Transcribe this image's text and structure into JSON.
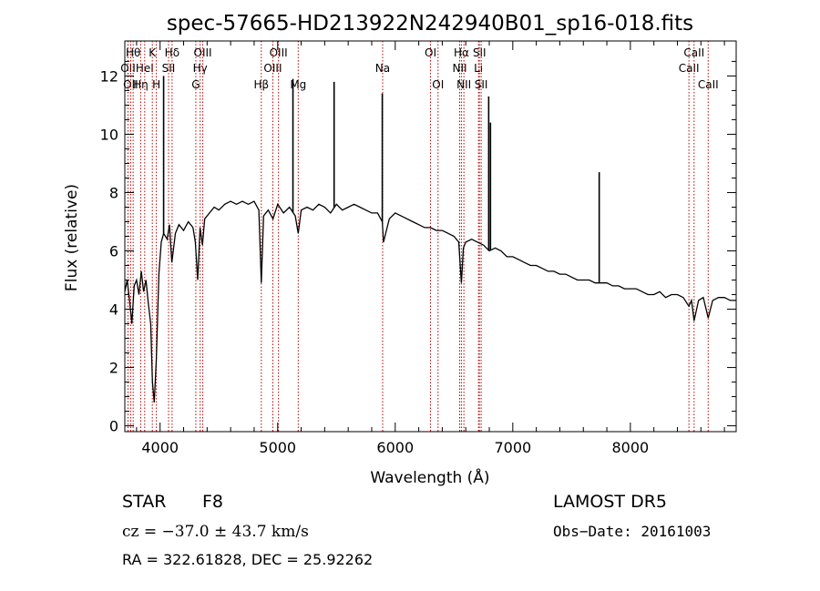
{
  "chart_data": {
    "type": "line",
    "title": "spec-57665-HD213922N242940B01_sp16-018.fits",
    "xlabel": "Wavelength (Å)",
    "ylabel": "Flux (relative)",
    "xlim": [
      3700,
      8900
    ],
    "ylim": [
      -0.2,
      13.2
    ],
    "x_ticks": [
      4000,
      5000,
      6000,
      7000,
      8000
    ],
    "x_tick_labels": [
      "4000",
      "5000",
      "6000",
      "7000",
      "8000"
    ],
    "y_ticks": [
      0,
      2,
      4,
      6,
      8,
      10,
      12
    ],
    "y_tick_labels": [
      "0",
      "2",
      "4",
      "6",
      "8",
      "10",
      "12"
    ],
    "grid": false,
    "series": [
      {
        "color": "#000000",
        "x": [
          3700,
          3720,
          3740,
          3760,
          3780,
          3800,
          3820,
          3840,
          3860,
          3880,
          3900,
          3920,
          3935,
          3950,
          3968,
          3990,
          4010,
          4030,
          4060,
          4080,
          4100,
          4130,
          4160,
          4200,
          4240,
          4280,
          4300,
          4320,
          4340,
          4360,
          4380,
          4420,
          4460,
          4500,
          4550,
          4600,
          4650,
          4700,
          4750,
          4800,
          4840,
          4861,
          4880,
          4920,
          4960,
          5000,
          5050,
          5100,
          5150,
          5175,
          5200,
          5250,
          5300,
          5350,
          5400,
          5450,
          5500,
          5550,
          5600,
          5650,
          5700,
          5750,
          5800,
          5850,
          5890,
          5900,
          5950,
          6000,
          6050,
          6100,
          6150,
          6200,
          6250,
          6300,
          6350,
          6400,
          6450,
          6500,
          6540,
          6563,
          6580,
          6600,
          6650,
          6700,
          6750,
          6800,
          6850,
          6900,
          6950,
          7000,
          7050,
          7100,
          7150,
          7200,
          7250,
          7300,
          7350,
          7400,
          7450,
          7500,
          7550,
          7600,
          7650,
          7700,
          7750,
          7800,
          7850,
          7900,
          7950,
          8000,
          8050,
          8100,
          8150,
          8200,
          8250,
          8300,
          8350,
          8400,
          8450,
          8498,
          8520,
          8542,
          8580,
          8620,
          8662,
          8700,
          8750,
          8800,
          8850,
          8900
        ],
        "y": [
          4.6,
          5.0,
          4.3,
          3.5,
          4.8,
          5.0,
          4.5,
          5.3,
          4.6,
          5.0,
          4.2,
          3.5,
          1.5,
          0.8,
          2.3,
          5.2,
          6.3,
          6.6,
          6.4,
          6.9,
          5.6,
          6.6,
          6.9,
          6.7,
          7.0,
          6.8,
          6.3,
          5.0,
          6.8,
          6.2,
          7.1,
          7.3,
          7.5,
          7.4,
          7.6,
          7.7,
          7.6,
          7.7,
          7.6,
          7.7,
          7.4,
          4.9,
          7.2,
          7.4,
          7.1,
          7.6,
          7.3,
          7.5,
          7.2,
          6.6,
          7.4,
          7.5,
          7.4,
          7.6,
          7.5,
          7.3,
          7.6,
          7.4,
          7.5,
          7.6,
          7.5,
          7.4,
          7.3,
          7.3,
          7.0,
          6.3,
          7.1,
          7.3,
          7.2,
          7.1,
          7.0,
          6.9,
          6.8,
          6.8,
          6.7,
          6.7,
          6.6,
          6.5,
          6.3,
          4.9,
          6.1,
          6.3,
          6.4,
          6.3,
          6.2,
          6.0,
          6.1,
          6.0,
          5.8,
          5.8,
          5.7,
          5.6,
          5.5,
          5.5,
          5.4,
          5.3,
          5.3,
          5.2,
          5.2,
          5.1,
          5.0,
          5.0,
          5.0,
          4.9,
          4.9,
          4.9,
          4.8,
          4.8,
          4.7,
          4.7,
          4.7,
          4.6,
          4.5,
          4.5,
          4.6,
          4.4,
          4.5,
          4.5,
          4.4,
          4.1,
          4.3,
          3.6,
          4.3,
          4.4,
          3.7,
          4.3,
          4.4,
          4.4,
          4.3,
          4.3
        ]
      }
    ],
    "spikes": [
      {
        "x": 4030,
        "y": 12.0
      },
      {
        "x": 5130,
        "y": 11.9
      },
      {
        "x": 5480,
        "y": 11.8
      },
      {
        "x": 5890,
        "y": 11.4
      },
      {
        "x": 6795,
        "y": 11.3
      },
      {
        "x": 6810,
        "y": 10.4
      },
      {
        "x": 7735,
        "y": 8.7
      }
    ],
    "line_markers": [
      {
        "x": 3727,
        "label": "OII",
        "row": 2
      },
      {
        "x": 3750,
        "label": "OII",
        "row": 3
      },
      {
        "x": 3771,
        "label": "Hθ",
        "row": 1
      },
      {
        "x": 3835,
        "label": "Hη",
        "row": 3
      },
      {
        "x": 3869,
        "label": "HeI",
        "row": 2
      },
      {
        "x": 3934,
        "label": "K",
        "row": 1
      },
      {
        "x": 3968,
        "label": "H",
        "row": 3
      },
      {
        "x": 4072,
        "label": "SII",
        "row": 2
      },
      {
        "x": 4102,
        "label": "Hδ",
        "row": 1
      },
      {
        "x": 4304,
        "label": "G",
        "row": 3
      },
      {
        "x": 4341,
        "label": "Hγ",
        "row": 2
      },
      {
        "x": 4363,
        "label": "OIII",
        "row": 1
      },
      {
        "x": 4861,
        "label": "Hβ",
        "row": 3
      },
      {
        "x": 4959,
        "label": "OIII",
        "row": 2
      },
      {
        "x": 5007,
        "label": "OIII",
        "row": 1
      },
      {
        "x": 5175,
        "label": "Mg",
        "row": 3
      },
      {
        "x": 5893,
        "label": "Na",
        "row": 2
      },
      {
        "x": 6300,
        "label": "OI",
        "row": 1
      },
      {
        "x": 6364,
        "label": "OI",
        "row": 3
      },
      {
        "x": 6548,
        "label": "NII",
        "row": 2
      },
      {
        "x": 6563,
        "label": "Hα",
        "row": 1
      },
      {
        "x": 6584,
        "label": "NII",
        "row": 3
      },
      {
        "x": 6708,
        "label": "Li",
        "row": 2
      },
      {
        "x": 6716,
        "label": "SII",
        "row": 1
      },
      {
        "x": 6731,
        "label": "SII",
        "row": 3
      },
      {
        "x": 8498,
        "label": "CaII",
        "row": 2
      },
      {
        "x": 8542,
        "label": "CaII",
        "row": 1
      },
      {
        "x": 8662,
        "label": "CaII",
        "row": 3
      }
    ],
    "marker_color": "#c00000"
  },
  "info": {
    "object_class": "STAR",
    "subclass": "F8",
    "survey": "LAMOST DR5",
    "redshift_text": "cz = −37.0 ± 43.7 km/s",
    "obs_date": "Obs−Date: 20161003",
    "coords": "RA = 322.61828, DEC =  25.92262"
  }
}
